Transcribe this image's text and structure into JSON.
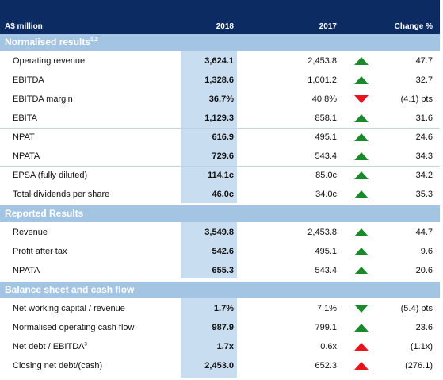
{
  "header": {
    "label": "A$ million",
    "col_2018": "2018",
    "col_2017": "2017",
    "col_change": "Change %"
  },
  "sections": {
    "normalised": {
      "title": "Normalised results",
      "sup": "1,2"
    },
    "reported": {
      "title": "Reported Results"
    },
    "balance": {
      "title": "Balance sheet and cash flow"
    }
  },
  "rows": [
    {
      "label": "Operating revenue",
      "v2018": "3,624.1",
      "v2017": "2,453.8",
      "change": "47.7",
      "arrow": "up-green"
    },
    {
      "label": "EBITDA",
      "v2018": "1,328.6",
      "v2017": "1,001.2",
      "change": "32.7",
      "arrow": "up-green"
    },
    {
      "label": "EBITDA margin",
      "v2018": "36.7%",
      "v2017": "40.8%",
      "change": "(4.1) pts",
      "arrow": "down-red"
    },
    {
      "label": "EBITA",
      "v2018": "1,129.3",
      "v2017": "858.1",
      "change": "31.6",
      "arrow": "up-green"
    },
    {
      "label": "NPAT",
      "v2018": "616.9",
      "v2017": "495.1",
      "change": "24.6",
      "arrow": "up-green"
    },
    {
      "label": "NPATA",
      "v2018": "729.6",
      "v2017": "543.4",
      "change": "34.3",
      "arrow": "up-green"
    },
    {
      "label": "EPSA (fully diluted)",
      "v2018": "114.1c",
      "v2017": "85.0c",
      "change": "34.2",
      "arrow": "up-green"
    },
    {
      "label": "Total dividends per share",
      "v2018": "46.0c",
      "v2017": "34.0c",
      "change": "35.3",
      "arrow": "up-green"
    },
    {
      "label": "Revenue",
      "v2018": "3,549.8",
      "v2017": "2,453.8",
      "change": "44.7",
      "arrow": "up-green"
    },
    {
      "label": "Profit after tax",
      "v2018": "542.6",
      "v2017": "495.1",
      "change": "9.6",
      "arrow": "up-green"
    },
    {
      "label": "NPATA",
      "v2018": "655.3",
      "v2017": "543.4",
      "change": "20.6",
      "arrow": "up-green"
    },
    {
      "label": "Net working capital / revenue",
      "v2018": "1.7%",
      "v2017": "7.1%",
      "change": "(5.4) pts",
      "arrow": "down-green"
    },
    {
      "label": "Normalised operating cash flow",
      "v2018": "987.9",
      "v2017": "799.1",
      "change": "23.6",
      "arrow": "up-green"
    },
    {
      "label": "Net debt / EBITDA",
      "label_sup": "3",
      "v2018": "1.7x",
      "v2017": "0.6x",
      "change": "(1.1x)",
      "arrow": "up-red"
    },
    {
      "label": "Closing net debt/(cash)",
      "v2018": "2,453.0",
      "v2017": "652.3",
      "change": "(276.1)",
      "arrow": "up-red"
    }
  ],
  "colors": {
    "header_bg": "#0c2b63",
    "section_bg": "#a4c4e4",
    "highlight_col": "#c9ddf1",
    "green": "#1a8a2a",
    "red": "#e8141c"
  }
}
